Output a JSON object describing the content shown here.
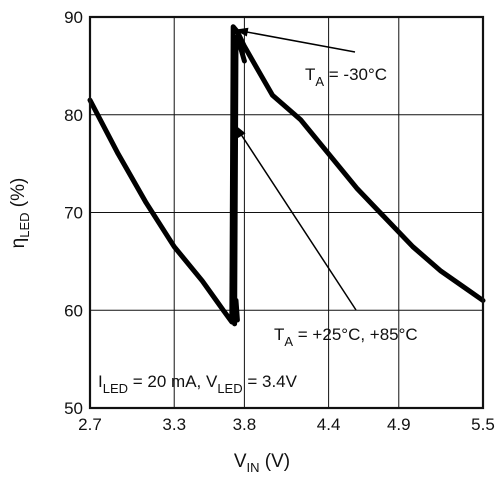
{
  "chart_data": {
    "type": "line",
    "xlim": [
      2.7,
      5.5
    ],
    "ylim": [
      50,
      90
    ],
    "x_ticks": [
      "2.7",
      "3.3",
      "3.8",
      "4.4",
      "4.9",
      "5.5"
    ],
    "x_tick_values": [
      2.7,
      3.3,
      3.8,
      4.4,
      4.9,
      5.5
    ],
    "y_ticks": [
      "50",
      "60",
      "70",
      "80",
      "90"
    ],
    "y_tick_values": [
      50,
      60,
      70,
      80,
      90
    ],
    "grid": true,
    "xlabel": {
      "main": "V",
      "sub": "IN",
      "unit": " (V)"
    },
    "ylabel": {
      "main": "η",
      "sub": "LED",
      "unit": " (%)"
    },
    "annotations": [
      {
        "parts": [
          [
            "T",
            ""
          ],
          [
            "A",
            "sub"
          ],
          [
            " = -30°C",
            ""
          ]
        ]
      },
      {
        "parts": [
          [
            "T",
            ""
          ],
          [
            "A",
            "sub"
          ],
          [
            " = +25°C, +85°C",
            ""
          ]
        ]
      },
      {
        "parts": [
          [
            "I",
            ""
          ],
          [
            "LED",
            "sub"
          ],
          [
            " = 20 mA, V",
            ""
          ],
          [
            "LED",
            "sub"
          ],
          [
            " = 3.4V",
            ""
          ]
        ]
      }
    ],
    "series": [
      {
        "x": [
          2.7,
          2.9,
          3.1,
          3.3,
          3.5,
          3.6,
          3.65,
          3.7,
          3.71,
          3.72,
          3.75,
          3.8,
          3.9,
          4.0,
          4.2,
          4.4,
          4.6,
          4.8,
          5.0,
          5.2,
          5.4,
          5.5
        ],
        "y": [
          81.5,
          76.0,
          71.0,
          66.5,
          63.0,
          61.0,
          60.0,
          59.0,
          58.8,
          89.0,
          88.5,
          87.0,
          84.5,
          82.0,
          79.5,
          76.0,
          72.5,
          69.5,
          66.5,
          64.0,
          62.0,
          61.0
        ]
      },
      {
        "x": [
          3.73,
          3.74,
          3.75,
          3.76,
          3.78,
          3.8
        ],
        "y": [
          58.6,
          87.5,
          88.0,
          87.5,
          86.5,
          85.5
        ]
      },
      {
        "x": [
          3.72,
          3.73,
          3.74,
          3.75
        ],
        "y": [
          59.0,
          60.0,
          61.0,
          59.0
        ]
      }
    ]
  }
}
